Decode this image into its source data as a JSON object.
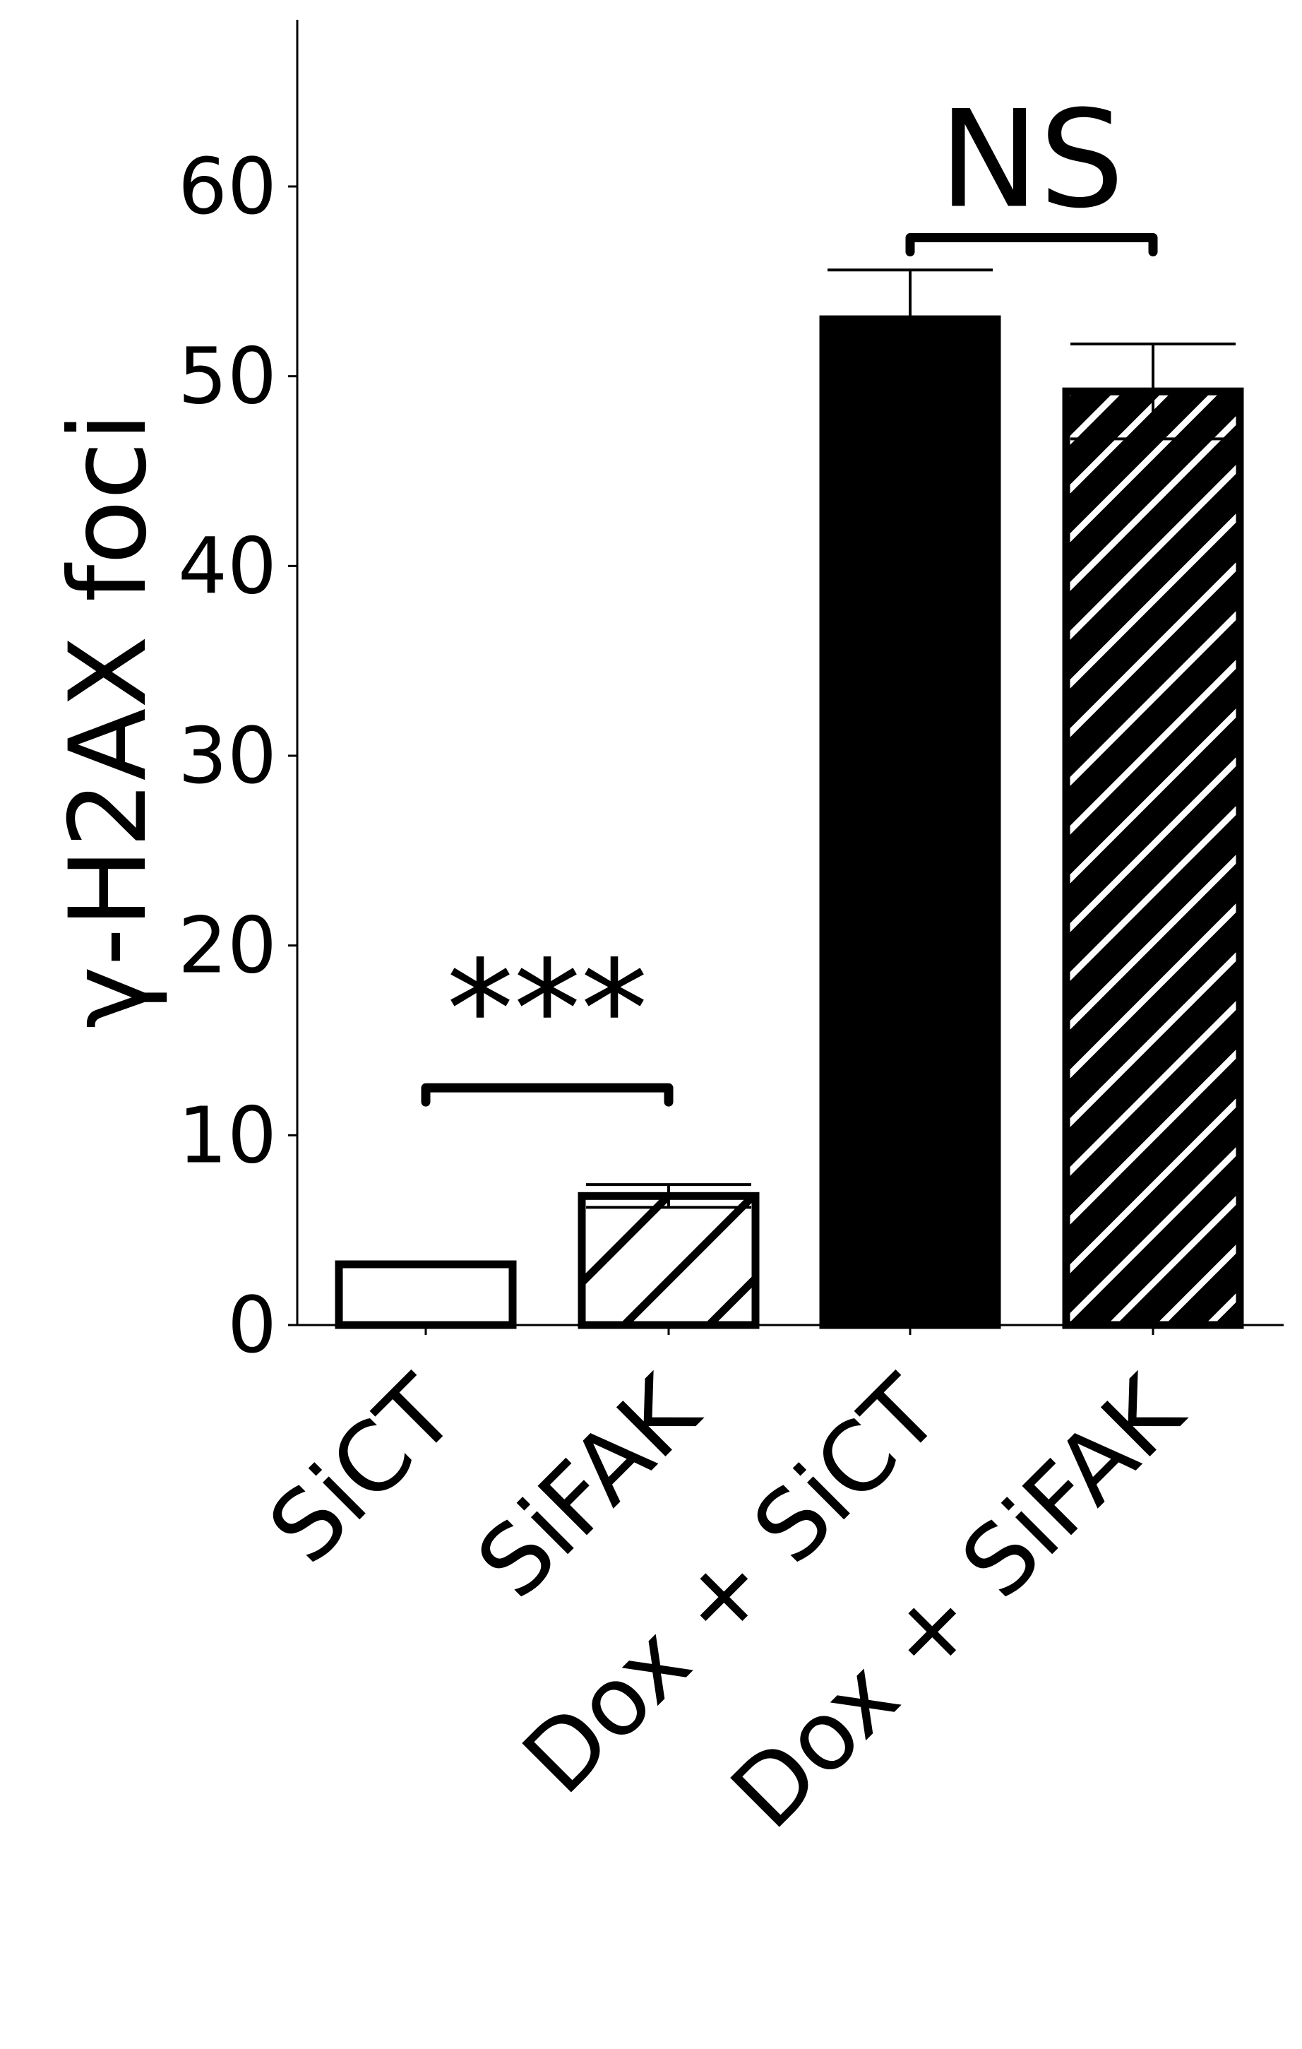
{
  "chart_data": {
    "type": "bar",
    "title": "",
    "xlabel": "",
    "ylabel": "γ-H2AX foci",
    "ylim": [
      0,
      68.5
    ],
    "yticks": [
      0,
      10,
      20,
      30,
      40,
      50,
      60
    ],
    "grid": false,
    "categories": [
      "SiCT",
      "SiFAK",
      "Dox + SiCT",
      "Dox + SiFAK"
    ],
    "values": [
      3.2,
      6.8,
      53.0,
      49.2
    ],
    "errors": [
      0.0,
      0.6,
      2.6,
      2.5
    ],
    "styles": [
      {
        "fill": "#ffffff",
        "hatch": false
      },
      {
        "fill": "#ffffff",
        "hatch": true
      },
      {
        "fill": "#000000",
        "hatch": false
      },
      {
        "fill": "#000000",
        "hatch": true
      }
    ],
    "annotations": [
      {
        "text": "***",
        "between": [
          0,
          1
        ],
        "bracket_y": 12.5
      },
      {
        "text": "NS",
        "between": [
          2,
          3
        ],
        "bracket_y": 57.3
      }
    ]
  }
}
